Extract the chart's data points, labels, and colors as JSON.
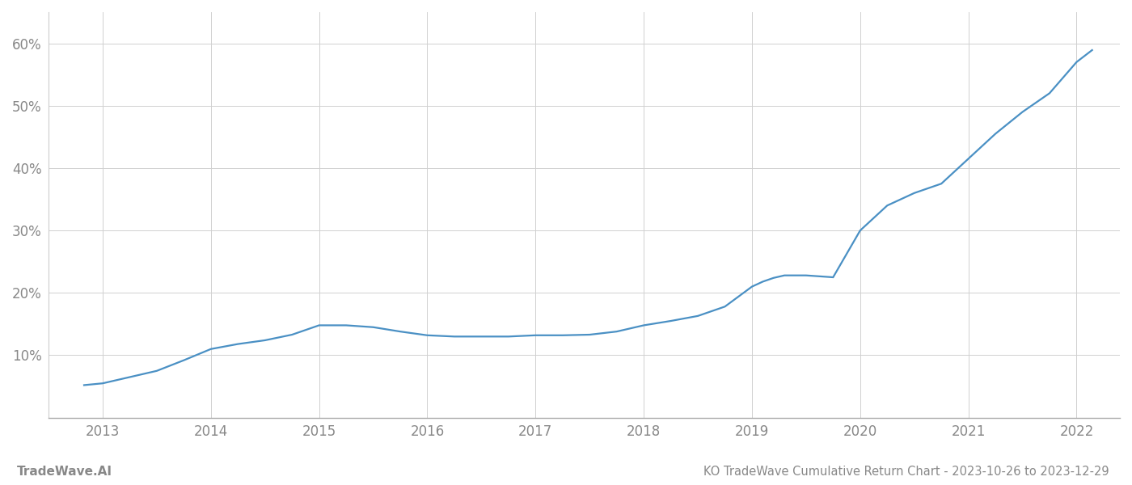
{
  "title": "KO TradeWave Cumulative Return Chart - 2023-10-26 to 2023-12-29",
  "watermark": "TradeWave.AI",
  "line_color": "#4a90c4",
  "background_color": "#ffffff",
  "grid_color": "#d0d0d0",
  "x_values": [
    2012.82,
    2013.0,
    2013.25,
    2013.5,
    2013.75,
    2014.0,
    2014.25,
    2014.5,
    2014.75,
    2015.0,
    2015.25,
    2015.5,
    2015.75,
    2016.0,
    2016.25,
    2016.5,
    2016.75,
    2017.0,
    2017.25,
    2017.5,
    2017.75,
    2018.0,
    2018.25,
    2018.5,
    2018.75,
    2019.0,
    2019.1,
    2019.2,
    2019.3,
    2019.5,
    2019.75,
    2020.0,
    2020.25,
    2020.5,
    2020.75,
    2021.0,
    2021.25,
    2021.5,
    2021.75,
    2022.0,
    2022.15
  ],
  "y_values": [
    0.052,
    0.055,
    0.065,
    0.075,
    0.092,
    0.11,
    0.118,
    0.124,
    0.133,
    0.148,
    0.148,
    0.145,
    0.138,
    0.132,
    0.13,
    0.13,
    0.13,
    0.132,
    0.132,
    0.133,
    0.138,
    0.148,
    0.155,
    0.163,
    0.178,
    0.21,
    0.218,
    0.224,
    0.228,
    0.228,
    0.225,
    0.3,
    0.34,
    0.36,
    0.375,
    0.415,
    0.455,
    0.49,
    0.52,
    0.57,
    0.59
  ],
  "xlim": [
    2012.5,
    2022.4
  ],
  "ylim": [
    0.0,
    0.65
  ],
  "yticks": [
    0.1,
    0.2,
    0.3,
    0.4,
    0.5,
    0.6
  ],
  "ytick_labels": [
    "10%",
    "20%",
    "30%",
    "40%",
    "50%",
    "60%"
  ],
  "xticks": [
    2013,
    2014,
    2015,
    2016,
    2017,
    2018,
    2019,
    2020,
    2021,
    2022
  ],
  "line_width": 1.6,
  "title_fontsize": 10.5,
  "tick_fontsize": 12,
  "watermark_fontsize": 11,
  "axis_color": "#aaaaaa",
  "tick_color": "#888888",
  "spine_left_color": "#cccccc"
}
